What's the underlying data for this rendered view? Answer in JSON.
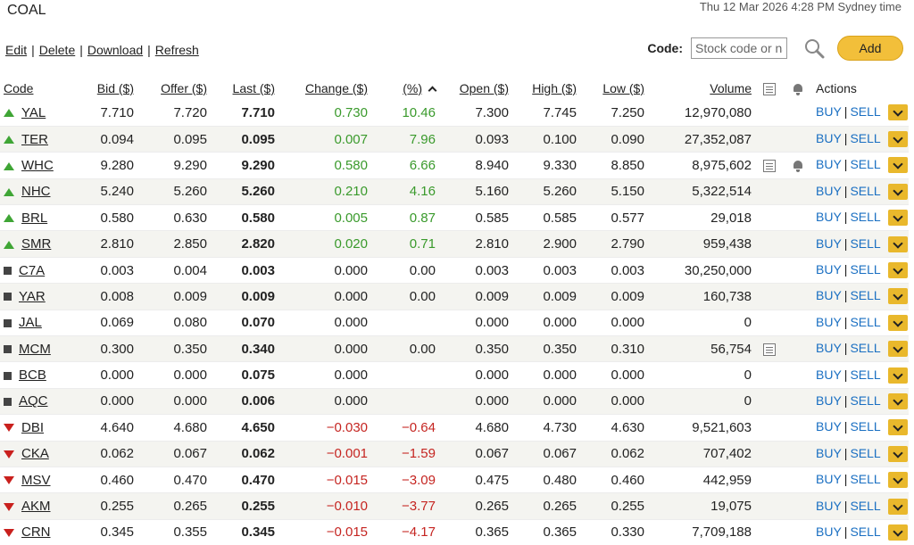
{
  "page": {
    "title": "COAL",
    "timestamp": "Thu 12 Mar 2026 4:28 PM Sydney time"
  },
  "toolbar": {
    "edit": "Edit",
    "delete": "Delete",
    "download": "Download",
    "refresh": "Refresh",
    "separator": "|"
  },
  "code_search": {
    "label": "Code:",
    "placeholder": "Stock code or name",
    "add_label": "Add",
    "search_icon": "search-icon"
  },
  "columns": {
    "code": "Code",
    "bid": "Bid ($)",
    "offer": "Offer ($)",
    "last": "Last ($)",
    "change": "Change ($)",
    "pct": "(%)",
    "open": "Open ($)",
    "high": "High ($)",
    "low": "Low ($)",
    "volume": "Volume",
    "notes_icon": "note-icon",
    "alerts_icon": "bell-icon",
    "actions": "Actions"
  },
  "actions": {
    "buy": "BUY",
    "sell": "SELL",
    "separator": "|"
  },
  "colors": {
    "up": "#3fa535",
    "down": "#c9201d",
    "flat": "#444444",
    "link": "#1a6fc2",
    "accent": "#f2bf3a"
  },
  "rows": [
    {
      "trend": "up",
      "code": "YAL",
      "bid": "7.710",
      "offer": "7.720",
      "last": "7.710",
      "change": "0.730",
      "pct": "10.46",
      "open": "7.300",
      "high": "7.745",
      "low": "7.250",
      "volume": "12,970,080",
      "note": false,
      "alert": false
    },
    {
      "trend": "up",
      "code": "TER",
      "bid": "0.094",
      "offer": "0.095",
      "last": "0.095",
      "change": "0.007",
      "pct": "7.96",
      "open": "0.093",
      "high": "0.100",
      "low": "0.090",
      "volume": "27,352,087",
      "note": false,
      "alert": false
    },
    {
      "trend": "up",
      "code": "WHC",
      "bid": "9.280",
      "offer": "9.290",
      "last": "9.290",
      "change": "0.580",
      "pct": "6.66",
      "open": "8.940",
      "high": "9.330",
      "low": "8.850",
      "volume": "8,975,602",
      "note": true,
      "alert": true
    },
    {
      "trend": "up",
      "code": "NHC",
      "bid": "5.240",
      "offer": "5.260",
      "last": "5.260",
      "change": "0.210",
      "pct": "4.16",
      "open": "5.160",
      "high": "5.260",
      "low": "5.150",
      "volume": "5,322,514",
      "note": false,
      "alert": false
    },
    {
      "trend": "up",
      "code": "BRL",
      "bid": "0.580",
      "offer": "0.630",
      "last": "0.580",
      "change": "0.005",
      "pct": "0.87",
      "open": "0.585",
      "high": "0.585",
      "low": "0.577",
      "volume": "29,018",
      "note": false,
      "alert": false
    },
    {
      "trend": "up",
      "code": "SMR",
      "bid": "2.810",
      "offer": "2.850",
      "last": "2.820",
      "change": "0.020",
      "pct": "0.71",
      "open": "2.810",
      "high": "2.900",
      "low": "2.790",
      "volume": "959,438",
      "note": false,
      "alert": false
    },
    {
      "trend": "flat",
      "code": "C7A",
      "bid": "0.003",
      "offer": "0.004",
      "last": "0.003",
      "change": "0.000",
      "pct": "0.00",
      "open": "0.003",
      "high": "0.003",
      "low": "0.003",
      "volume": "30,250,000",
      "note": false,
      "alert": false
    },
    {
      "trend": "flat",
      "code": "YAR",
      "bid": "0.008",
      "offer": "0.009",
      "last": "0.009",
      "change": "0.000",
      "pct": "0.00",
      "open": "0.009",
      "high": "0.009",
      "low": "0.009",
      "volume": "160,738",
      "note": false,
      "alert": false
    },
    {
      "trend": "flat",
      "code": "JAL",
      "bid": "0.069",
      "offer": "0.080",
      "last": "0.070",
      "change": "0.000",
      "pct": "",
      "open": "0.000",
      "high": "0.000",
      "low": "0.000",
      "volume": "0",
      "note": false,
      "alert": false
    },
    {
      "trend": "flat",
      "code": "MCM",
      "bid": "0.300",
      "offer": "0.350",
      "last": "0.340",
      "change": "0.000",
      "pct": "0.00",
      "open": "0.350",
      "high": "0.350",
      "low": "0.310",
      "volume": "56,754",
      "note": true,
      "alert": false
    },
    {
      "trend": "flat",
      "code": "BCB",
      "bid": "0.000",
      "offer": "0.000",
      "last": "0.075",
      "change": "0.000",
      "pct": "",
      "open": "0.000",
      "high": "0.000",
      "low": "0.000",
      "volume": "0",
      "note": false,
      "alert": false
    },
    {
      "trend": "flat",
      "code": "AQC",
      "bid": "0.000",
      "offer": "0.000",
      "last": "0.006",
      "change": "0.000",
      "pct": "",
      "open": "0.000",
      "high": "0.000",
      "low": "0.000",
      "volume": "0",
      "note": false,
      "alert": false
    },
    {
      "trend": "down",
      "code": "DBI",
      "bid": "4.640",
      "offer": "4.680",
      "last": "4.650",
      "change": "-0.030",
      "pct": "-0.64",
      "open": "4.680",
      "high": "4.730",
      "low": "4.630",
      "volume": "9,521,603",
      "note": false,
      "alert": false
    },
    {
      "trend": "down",
      "code": "CKA",
      "bid": "0.062",
      "offer": "0.067",
      "last": "0.062",
      "change": "-0.001",
      "pct": "-1.59",
      "open": "0.067",
      "high": "0.067",
      "low": "0.062",
      "volume": "707,402",
      "note": false,
      "alert": false
    },
    {
      "trend": "down",
      "code": "MSV",
      "bid": "0.460",
      "offer": "0.470",
      "last": "0.470",
      "change": "-0.015",
      "pct": "-3.09",
      "open": "0.475",
      "high": "0.480",
      "low": "0.460",
      "volume": "442,959",
      "note": false,
      "alert": false
    },
    {
      "trend": "down",
      "code": "AKM",
      "bid": "0.255",
      "offer": "0.265",
      "last": "0.255",
      "change": "-0.010",
      "pct": "-3.77",
      "open": "0.265",
      "high": "0.265",
      "low": "0.255",
      "volume": "19,075",
      "note": false,
      "alert": false
    },
    {
      "trend": "down",
      "code": "CRN",
      "bid": "0.345",
      "offer": "0.355",
      "last": "0.345",
      "change": "-0.015",
      "pct": "-4.17",
      "open": "0.365",
      "high": "0.365",
      "low": "0.330",
      "volume": "7,709,188",
      "note": false,
      "alert": false
    }
  ]
}
